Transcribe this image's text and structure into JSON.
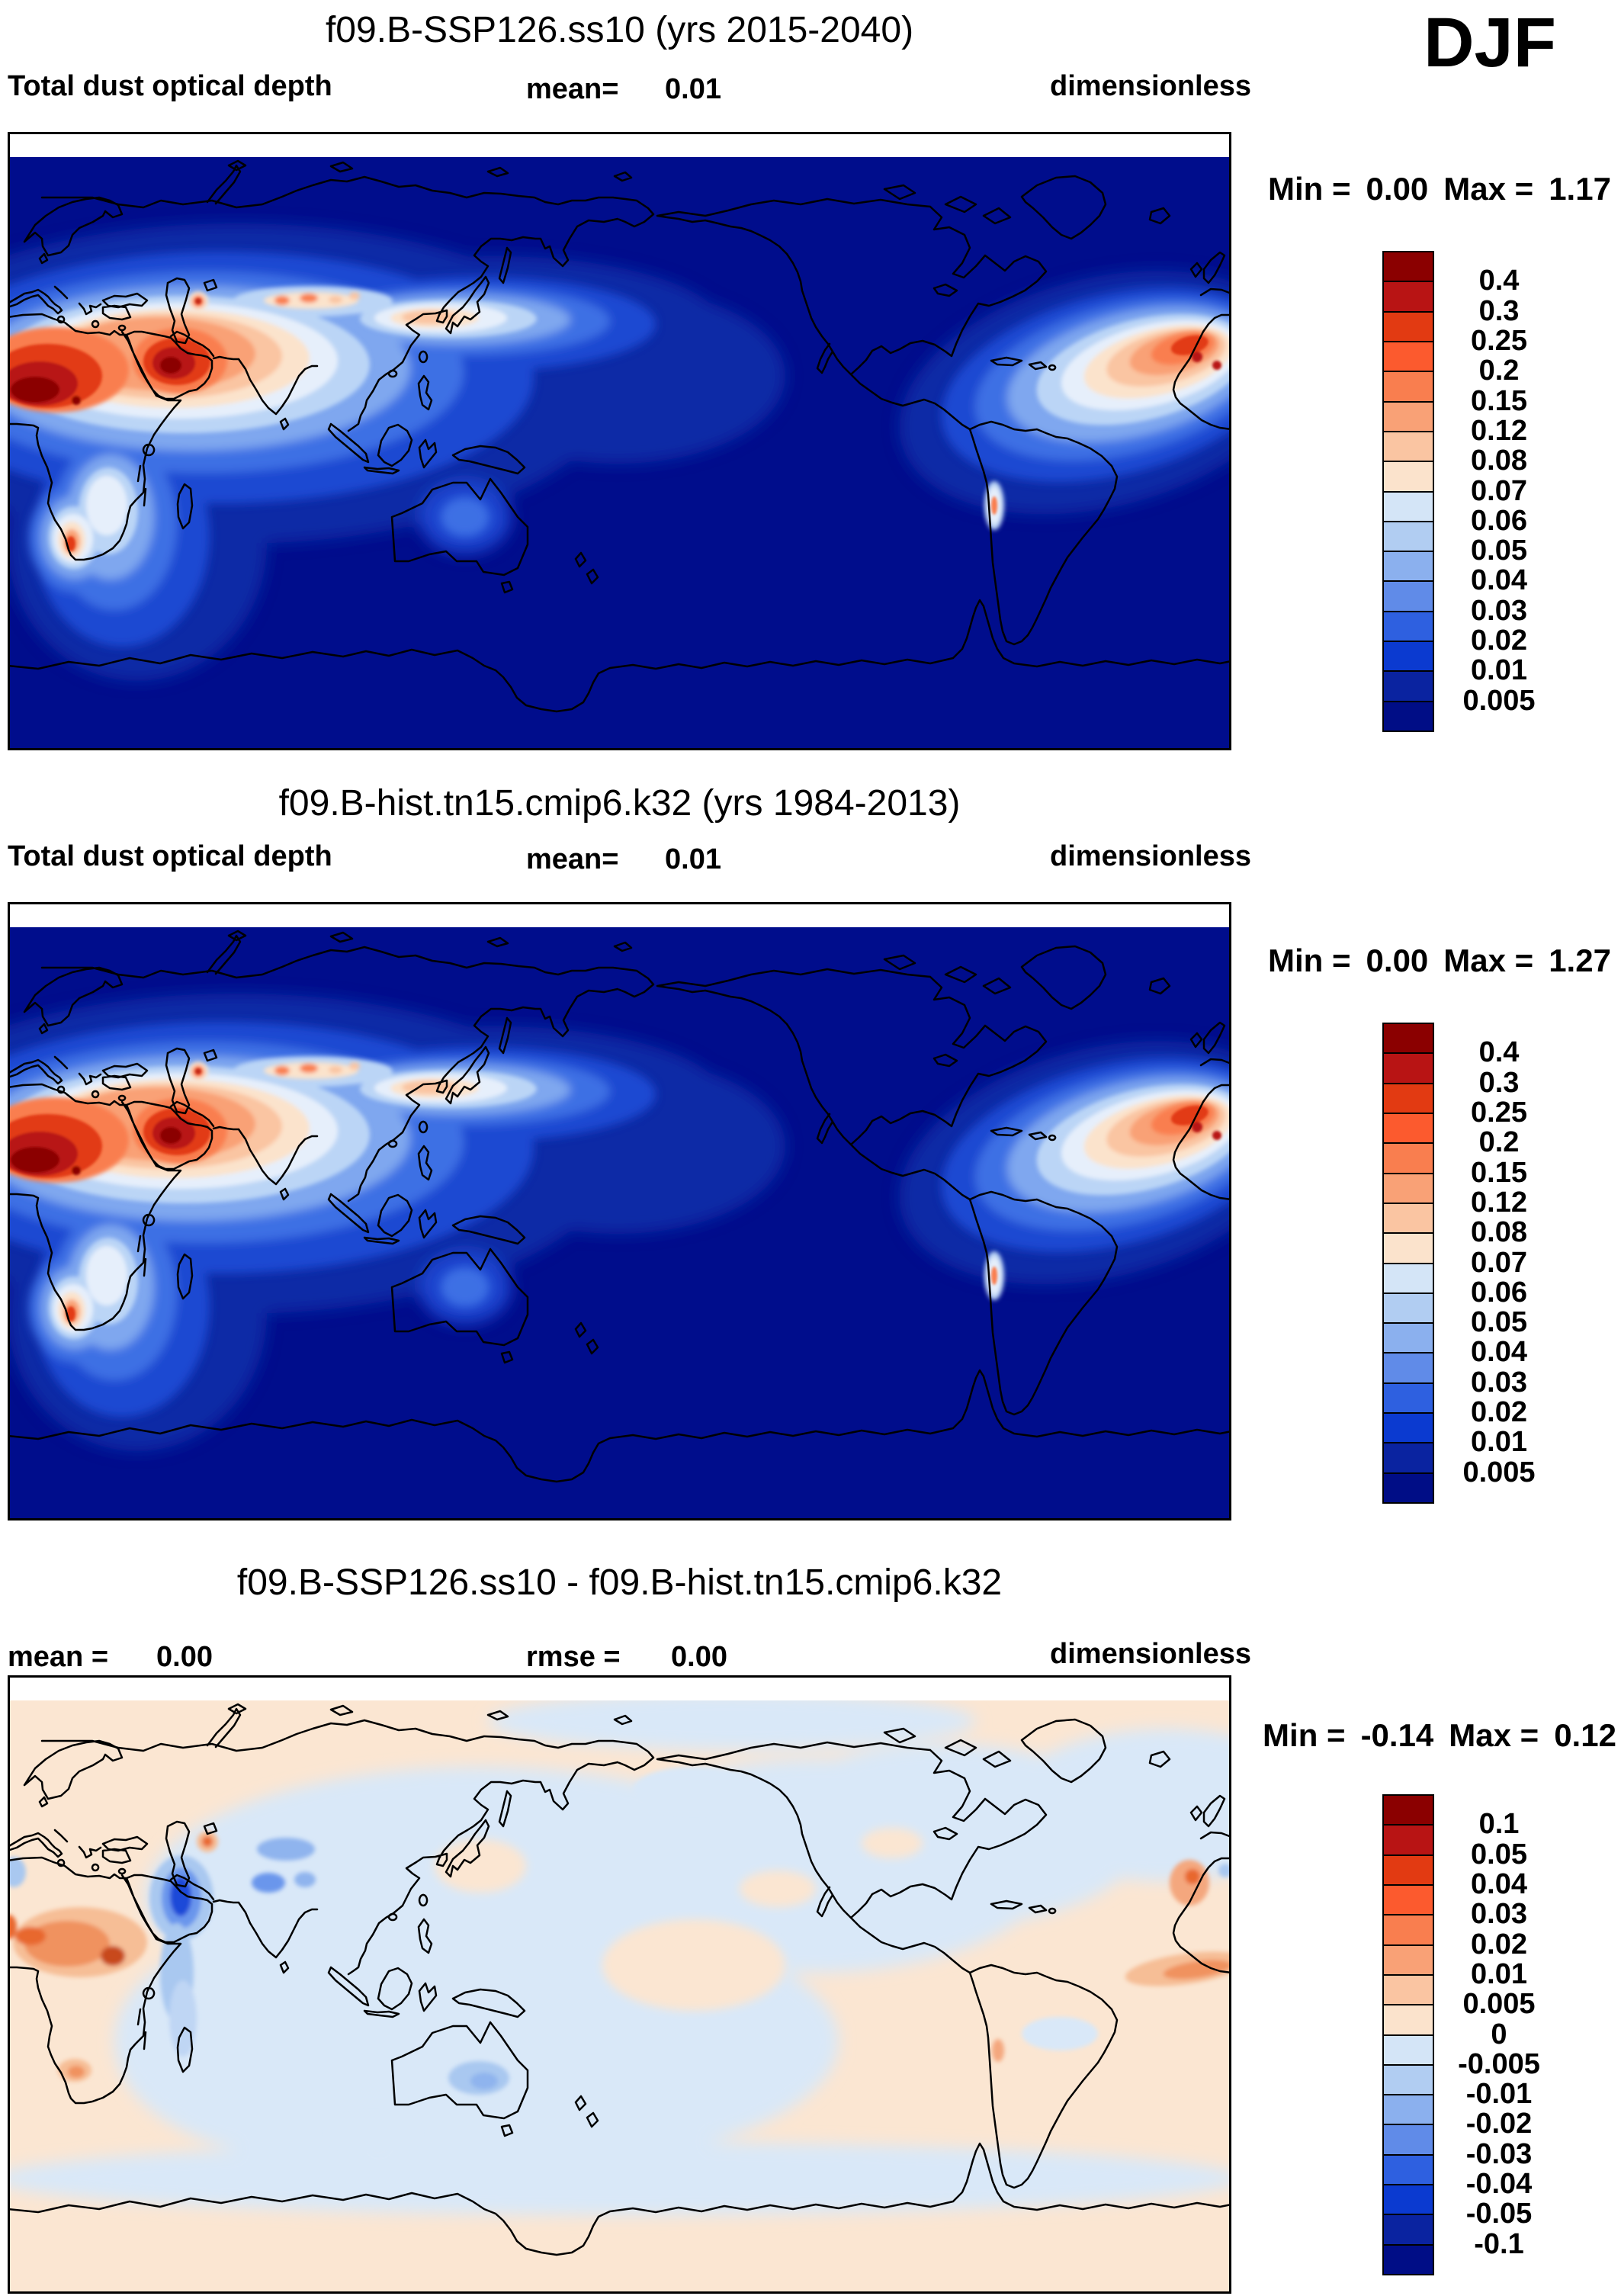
{
  "season_label": "DJF",
  "panels": [
    {
      "title": "f09.B-SSP126.ss10 (yrs 2015-2040)",
      "field_label": "Total dust optical depth",
      "mean_label": "mean=",
      "mean_value": "0.01",
      "units_label": "dimensionless",
      "min_label": "Min =",
      "min_value": "0.00",
      "max_label": "Max =",
      "max_value": "1.17",
      "colorbar": {
        "tick_labels": [
          "0.4",
          "0.3",
          "0.25",
          "0.2",
          "0.15",
          "0.12",
          "0.08",
          "0.07",
          "0.06",
          "0.05",
          "0.04",
          "0.03",
          "0.02",
          "0.01",
          "0.005"
        ],
        "segment_colors_top_to_bottom": [
          "#8B0000",
          "#B81414",
          "#E23A12",
          "#FC5A2E",
          "#F97E4F",
          "#F9A176",
          "#FAC5A2",
          "#FBE3CC",
          "#D4E5F7",
          "#B1CDF2",
          "#8BB0EE",
          "#608BE8",
          "#2E60E0",
          "#0B3AD0",
          "#0A23A0",
          "#000D86"
        ]
      }
    },
    {
      "title": "f09.B-hist.tn15.cmip6.k32 (yrs 1984-2013)",
      "field_label": "Total dust optical depth",
      "mean_label": "mean=",
      "mean_value": "0.01",
      "units_label": "dimensionless",
      "min_label": "Min =",
      "min_value": "0.00",
      "max_label": "Max =",
      "max_value": "1.27",
      "colorbar": {
        "tick_labels": [
          "0.4",
          "0.3",
          "0.25",
          "0.2",
          "0.15",
          "0.12",
          "0.08",
          "0.07",
          "0.06",
          "0.05",
          "0.04",
          "0.03",
          "0.02",
          "0.01",
          "0.005"
        ],
        "segment_colors_top_to_bottom": [
          "#8B0000",
          "#B81414",
          "#E23A12",
          "#FC5A2E",
          "#F97E4F",
          "#F9A176",
          "#FAC5A2",
          "#FBE3CC",
          "#D4E5F7",
          "#B1CDF2",
          "#8BB0EE",
          "#608BE8",
          "#2E60E0",
          "#0B3AD0",
          "#0A23A0",
          "#000D86"
        ]
      }
    },
    {
      "title": "f09.B-SSP126.ss10 - f09.B-hist.tn15.cmip6.k32",
      "mean_label": "mean =",
      "mean_value": "0.00",
      "rmse_label": "rmse =",
      "rmse_value": "0.00",
      "units_label": "dimensionless",
      "min_label": "Min =",
      "min_value": "-0.14",
      "max_label": "Max =",
      "max_value": "0.12",
      "colorbar": {
        "tick_labels": [
          "0.1",
          "0.05",
          "0.04",
          "0.03",
          "0.02",
          "0.01",
          "0.005",
          "0",
          "-0.005",
          "-0.01",
          "-0.02",
          "-0.03",
          "-0.04",
          "-0.05",
          "-0.1"
        ],
        "segment_colors_top_to_bottom": [
          "#8B0000",
          "#B81414",
          "#E23A12",
          "#FC5A2E",
          "#F97E4F",
          "#F9A176",
          "#FAC5A2",
          "#FBE3CC",
          "#D4E5F7",
          "#B1CDF2",
          "#8BB0EE",
          "#608BE8",
          "#2E60E0",
          "#0B3AD0",
          "#0A23A0",
          "#000D86"
        ]
      }
    }
  ],
  "chart_data": [
    {
      "type": "heatmap",
      "title": "f09.B-SSP126.ss10 (yrs 2015-2040)",
      "variable": "Total dust optical depth",
      "units": "dimensionless",
      "season": "DJF",
      "projection": "global latitude-longitude map, Pacific-centered (left edge ~0E)",
      "mean": 0.01,
      "min": 0.0,
      "max": 1.17,
      "contour_levels": [
        0.005,
        0.01,
        0.02,
        0.03,
        0.04,
        0.05,
        0.06,
        0.07,
        0.08,
        0.12,
        0.15,
        0.2,
        0.25,
        0.3,
        0.4
      ],
      "legend_position": "right",
      "high_value_regions": [
        "Sahara/Sahel (left edge)",
        "Arabian Peninsula",
        "North Atlantic dust plume off West Africa (right edge)",
        "Caspian/Aral region",
        "Taklamakan-Gobi spots",
        "SW Africa coast spot",
        "Chile coast sliver"
      ],
      "background_value": "ocean < 0.005 (dark navy)"
    },
    {
      "type": "heatmap",
      "title": "f09.B-hist.tn15.cmip6.k32 (yrs 1984-2013)",
      "variable": "Total dust optical depth",
      "units": "dimensionless",
      "season": "DJF",
      "projection": "global latitude-longitude map, Pacific-centered (left edge ~0E)",
      "mean": 0.01,
      "min": 0.0,
      "max": 1.27,
      "contour_levels": [
        0.005,
        0.01,
        0.02,
        0.03,
        0.04,
        0.05,
        0.06,
        0.07,
        0.08,
        0.12,
        0.15,
        0.2,
        0.25,
        0.3,
        0.4
      ],
      "legend_position": "right",
      "high_value_regions": [
        "Sahara/Sahel (left edge)",
        "Arabian Peninsula",
        "North Atlantic dust plume off West Africa (right edge)",
        "Caspian/Aral region",
        "Taklamakan-Gobi spots",
        "SW Africa coast spot",
        "Chile coast sliver"
      ],
      "background_value": "ocean < 0.005 (dark navy)"
    },
    {
      "type": "heatmap",
      "title": "f09.B-SSP126.ss10 - f09.B-hist.tn15.cmip6.k32",
      "variable": "Total dust optical depth difference",
      "units": "dimensionless",
      "season": "DJF",
      "projection": "global latitude-longitude map, Pacific-centered (left edge ~0E)",
      "mean": 0.0,
      "rmse": 0.0,
      "min": -0.14,
      "max": 0.12,
      "contour_levels": [
        -0.1,
        -0.05,
        -0.04,
        -0.03,
        -0.02,
        -0.01,
        -0.005,
        0,
        0.005,
        0.01,
        0.02,
        0.03,
        0.04,
        0.05,
        0.1
      ],
      "legend_position": "right",
      "positive_anomaly_regions": [
        "Sahel/Sudan",
        "Caspian/Aral spot",
        "tropical North Atlantic off West Africa",
        "SW Africa spot",
        "Chile coast"
      ],
      "negative_anomaly_regions": [
        "Arabian Sea / Oman (strong)",
        "Tibet spots",
        "central & east Asia (weak)",
        "North America (weak)",
        "Australia interior spot",
        "Southern Ocean band"
      ]
    }
  ]
}
